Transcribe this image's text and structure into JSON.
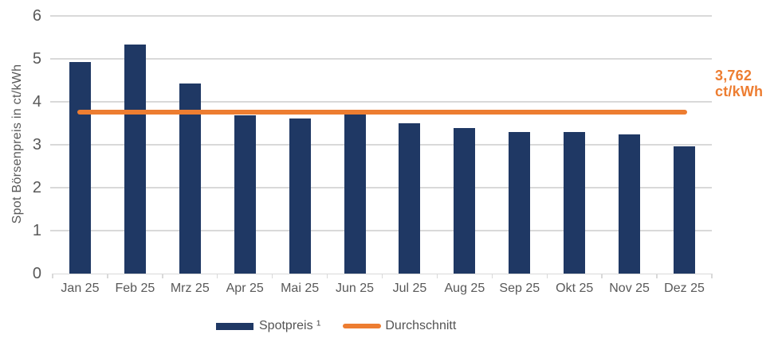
{
  "chart_data": {
    "type": "bar",
    "title": "",
    "xlabel": "",
    "ylabel": "Spot Börsenpreis in ct/kWh",
    "ylim": [
      0,
      6
    ],
    "yticks": [
      0,
      1,
      2,
      3,
      4,
      5,
      6
    ],
    "grid": true,
    "categories": [
      "Jan 25",
      "Feb 25",
      "Mrz 25",
      "Apr 25",
      "Mai 25",
      "Jun 25",
      "Jul 25",
      "Aug 25",
      "Sep 25",
      "Okt 25",
      "Nov 25",
      "Dez 25"
    ],
    "series": [
      {
        "name": "Spotpreis ¹",
        "type": "bar",
        "color": "#1F3864",
        "values": [
          4.93,
          5.34,
          4.42,
          3.69,
          3.61,
          3.71,
          3.5,
          3.39,
          3.3,
          3.3,
          3.24,
          2.96
        ]
      },
      {
        "name": "Durchschnitt",
        "type": "line",
        "color": "#ED7D31",
        "value": 3.762
      }
    ],
    "annotation": {
      "line1": "3,762",
      "line2": "ct/kWh",
      "color": "#ED7D31"
    },
    "legend": {
      "position": "bottom",
      "entries": [
        {
          "label": "Spotpreis ¹",
          "swatch": "bar",
          "color": "#1F3864"
        },
        {
          "label": "Durchschnitt",
          "swatch": "line",
          "color": "#ED7D31"
        }
      ]
    },
    "colors": {
      "bar": "#1F3864",
      "accent": "#ED7D31",
      "axis_text": "#595959",
      "gridline": "#D9D9D9",
      "legend_text": "#545454",
      "background": "#FFFFFF"
    }
  }
}
